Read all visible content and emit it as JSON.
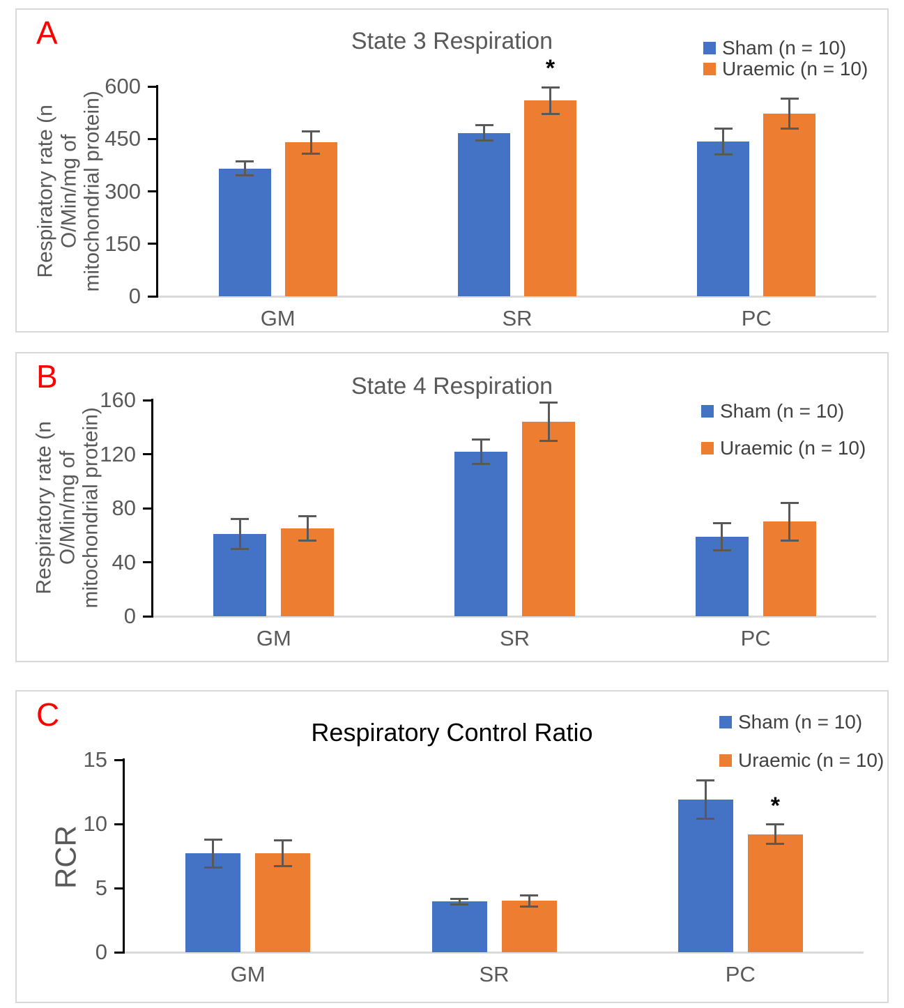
{
  "figure": {
    "background": "#ffffff",
    "panel_letters": [
      "A",
      "B",
      "C"
    ]
  },
  "colors": {
    "sham_blue": "#4472C4",
    "uraemic_orange": "#ED7D31",
    "error_bar": "#595959",
    "axis_line": "#000000",
    "baseline": "#D9D9D9",
    "tick_label": "#595959",
    "category_label": "#595959",
    "panel_letter": "#FF0000",
    "panel_border": "#D9D9D9",
    "legend_text": "#404040",
    "significance_marker": "#000000"
  },
  "chart_data": [
    {
      "type": "bar",
      "panel_label": "A",
      "title": "State 3 Respiration",
      "title_color": "#595959",
      "xlabel": "",
      "ylabel": "Respiratory rate (n O/Min/mg of mitochondrial protein)",
      "ylabel_lines": [
        "Respiratory rate (n",
        "O/Min/mg of",
        "mitochondrial protein)"
      ],
      "categories": [
        "GM",
        "SR",
        "PC"
      ],
      "series": [
        {
          "name": "Sham (n = 10)",
          "color": "#4472C4",
          "values": [
            365,
            467,
            443
          ],
          "errors": [
            20,
            22,
            37
          ],
          "sig": [
            "",
            "",
            ""
          ]
        },
        {
          "name": "Uraemic (n = 10)",
          "color": "#ED7D31",
          "values": [
            440,
            560,
            523
          ],
          "errors": [
            32,
            38,
            43
          ],
          "sig": [
            "",
            "*",
            ""
          ]
        }
      ],
      "ylim": [
        0,
        600
      ],
      "yticks": [
        0,
        150,
        300,
        450,
        600
      ],
      "grid": false,
      "legend_position": "top-right"
    },
    {
      "type": "bar",
      "panel_label": "B",
      "title": "State 4 Respiration",
      "title_color": "#595959",
      "xlabel": "",
      "ylabel": "Respiratory rate (n O/Min/mg of mitochondrial protein)",
      "ylabel_lines": [
        "Respiratory rate (n",
        "O/Min/mg of",
        "mitochondrial protein)"
      ],
      "categories": [
        "GM",
        "SR",
        "PC"
      ],
      "series": [
        {
          "name": "Sham (n = 10)",
          "color": "#4472C4",
          "values": [
            61,
            122,
            59
          ],
          "errors": [
            11,
            9,
            10
          ],
          "sig": [
            "",
            "",
            ""
          ]
        },
        {
          "name": "Uraemic (n = 10)",
          "color": "#ED7D31",
          "values": [
            65,
            144,
            70
          ],
          "errors": [
            9,
            14,
            14
          ],
          "sig": [
            "",
            "",
            ""
          ]
        }
      ],
      "ylim": [
        0,
        160
      ],
      "yticks": [
        0,
        40,
        80,
        120,
        160
      ],
      "grid": false,
      "legend_position": "top-right"
    },
    {
      "type": "bar",
      "panel_label": "C",
      "title": "Respiratory Control Ratio",
      "title_color": "#000000",
      "xlabel": "",
      "ylabel": "RCR",
      "ylabel_lines": [
        "RCR"
      ],
      "categories": [
        "GM",
        "SR",
        "PC"
      ],
      "series": [
        {
          "name": "Sham (n = 10)",
          "color": "#4472C4",
          "values": [
            7.7,
            3.95,
            11.9
          ],
          "errors": [
            1.1,
            0.2,
            1.5
          ],
          "sig": [
            "",
            "",
            ""
          ]
        },
        {
          "name": "Uraemic (n = 10)",
          "color": "#ED7D31",
          "values": [
            7.7,
            4.0,
            9.2
          ],
          "errors": [
            1.0,
            0.45,
            0.75
          ],
          "sig": [
            "",
            "",
            "*"
          ]
        }
      ],
      "ylim": [
        0,
        15
      ],
      "yticks": [
        0,
        5,
        10,
        15
      ],
      "grid": false,
      "legend_position": "top-right"
    }
  ]
}
